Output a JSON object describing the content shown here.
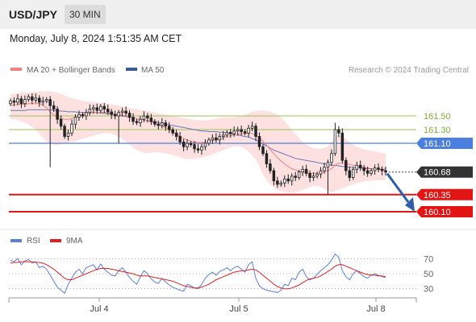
{
  "header": {
    "pair": "USD/JPY",
    "timeframe": "30 MIN"
  },
  "datetime": "Monday, July 8, 2024 1:51:35 AM CET",
  "legend": {
    "items": [
      {
        "label": "MA 20 + Bollinger Bands",
        "color": "#f08080"
      },
      {
        "label": "MA 50",
        "color": "#3a5a9a"
      }
    ],
    "credit": "Research © 2024 Trading Central"
  },
  "rsi_legend": {
    "items": [
      {
        "label": "RSI",
        "color": "#5b7fd6"
      },
      {
        "label": "9MA",
        "color": "#e02020"
      }
    ]
  },
  "colors": {
    "green_level": "#9bc25a",
    "blue_level": "#4a7fe0",
    "red_level": "#e31414",
    "current_box": "#333333",
    "arrow": "#2e5fa8",
    "candle": "#222222",
    "band_fill": "#fde0e0",
    "ma20": "#f08080",
    "ma50": "#6a78b8"
  },
  "chart_data": [
    {
      "type": "candlestick",
      "x_ticks": [
        "Jul 4",
        "Jul 5",
        "Jul 8"
      ],
      "ylim": [
        159.9,
        161.9
      ],
      "levels": [
        {
          "value": 161.5,
          "label": "161.50",
          "style": "green"
        },
        {
          "value": 161.3,
          "label": "161.30",
          "style": "green"
        },
        {
          "value": 161.1,
          "label": "161.10",
          "style": "blue"
        },
        {
          "value": 160.68,
          "label": "160.68",
          "style": "current"
        },
        {
          "value": 160.35,
          "label": "160.35",
          "style": "red"
        },
        {
          "value": 160.1,
          "label": "160.10",
          "style": "red"
        }
      ],
      "close_series": [
        161.72,
        161.7,
        161.75,
        161.68,
        161.74,
        161.78,
        161.73,
        161.76,
        161.7,
        161.72,
        161.74,
        161.65,
        161.6,
        161.45,
        161.35,
        161.2,
        161.25,
        161.38,
        161.48,
        161.52,
        161.5,
        161.55,
        161.6,
        161.62,
        161.58,
        161.64,
        161.6,
        161.56,
        161.52,
        161.5,
        161.55,
        161.57,
        161.54,
        161.48,
        161.42,
        161.4,
        161.45,
        161.5,
        161.47,
        161.42,
        161.38,
        161.36,
        161.4,
        161.35,
        161.3,
        161.25,
        161.2,
        161.12,
        161.05,
        161.1,
        161.08,
        161.02,
        161.0,
        161.05,
        161.1,
        161.15,
        161.18,
        161.15,
        161.2,
        161.22,
        161.26,
        161.24,
        161.28,
        161.3,
        161.27,
        161.25,
        161.32,
        161.35,
        161.2,
        161.05,
        160.95,
        160.8,
        160.7,
        160.55,
        160.5,
        160.52,
        160.58,
        160.55,
        160.62,
        160.6,
        160.68,
        160.72,
        160.66,
        160.6,
        160.62,
        160.65,
        160.7,
        160.75,
        160.82,
        160.95,
        161.3,
        161.25,
        160.85,
        160.7,
        160.6,
        160.72,
        160.78,
        160.74,
        160.7,
        160.66,
        160.7,
        160.74,
        160.72,
        160.7,
        160.68
      ],
      "ma20": [
        161.66,
        161.66,
        161.67,
        161.67,
        161.67,
        161.68,
        161.68,
        161.68,
        161.68,
        161.66,
        161.62,
        161.56,
        161.52,
        161.48,
        161.46,
        161.45,
        161.45,
        161.46,
        161.48,
        161.5,
        161.52,
        161.53,
        161.54,
        161.55,
        161.55,
        161.55,
        161.55,
        161.55,
        161.54,
        161.53,
        161.52,
        161.51,
        161.5,
        161.48,
        161.47,
        161.46,
        161.45,
        161.44,
        161.43,
        161.41,
        161.39,
        161.37,
        161.35,
        161.33,
        161.3,
        161.27,
        161.24,
        161.2,
        161.17,
        161.15,
        161.13,
        161.12,
        161.11,
        161.11,
        161.12,
        161.13,
        161.14,
        161.15,
        161.16,
        161.18,
        161.2,
        161.21,
        161.22,
        161.23,
        161.24,
        161.24,
        161.25,
        161.24,
        161.22,
        161.18,
        161.13,
        161.07,
        161.01,
        160.95,
        160.89,
        160.84,
        160.8,
        160.76,
        160.73,
        160.71,
        160.69,
        160.68,
        160.67,
        160.66,
        160.66,
        160.66,
        160.67,
        160.68,
        160.7,
        160.73,
        160.78,
        160.81,
        160.81,
        160.8,
        160.79,
        160.78,
        160.77,
        160.76,
        160.75,
        160.74,
        160.73,
        160.72,
        160.72,
        160.71,
        160.7
      ],
      "ma50": [
        161.58,
        161.58,
        161.58,
        161.58,
        161.58,
        161.59,
        161.59,
        161.59,
        161.59,
        161.59,
        161.59,
        161.59,
        161.58,
        161.58,
        161.57,
        161.57,
        161.56,
        161.56,
        161.56,
        161.55,
        161.55,
        161.55,
        161.55,
        161.55,
        161.55,
        161.54,
        161.54,
        161.53,
        161.53,
        161.52,
        161.51,
        161.5,
        161.49,
        161.48,
        161.47,
        161.46,
        161.45,
        161.44,
        161.43,
        161.42,
        161.41,
        161.4,
        161.39,
        161.38,
        161.37,
        161.36,
        161.35,
        161.34,
        161.33,
        161.32,
        161.31,
        161.3,
        161.29,
        161.28,
        161.28,
        161.27,
        161.27,
        161.27,
        161.26,
        161.26,
        161.25,
        161.24,
        161.23,
        161.22,
        161.21,
        161.2,
        161.19,
        161.17,
        161.15,
        161.12,
        161.09,
        161.06,
        161.03,
        161.0,
        160.98,
        160.96,
        160.94,
        160.92,
        160.9,
        160.88,
        160.87,
        160.86,
        160.85,
        160.84,
        160.83,
        160.82,
        160.81,
        160.8,
        160.79,
        160.78,
        160.78,
        160.77,
        160.76,
        160.76,
        160.75,
        160.75,
        160.74,
        160.74,
        160.73,
        160.73,
        160.73,
        160.72,
        160.72,
        160.72,
        160.72
      ],
      "band_upper": [
        161.82,
        161.82,
        161.83,
        161.84,
        161.84,
        161.84,
        161.85,
        161.85,
        161.86,
        161.86,
        161.86,
        161.86,
        161.85,
        161.84,
        161.82,
        161.8,
        161.78,
        161.76,
        161.75,
        161.73,
        161.72,
        161.71,
        161.71,
        161.7,
        161.7,
        161.69,
        161.69,
        161.68,
        161.67,
        161.66,
        161.65,
        161.64,
        161.63,
        161.62,
        161.61,
        161.6,
        161.59,
        161.58,
        161.57,
        161.56,
        161.55,
        161.54,
        161.53,
        161.52,
        161.51,
        161.5,
        161.49,
        161.48,
        161.47,
        161.46,
        161.45,
        161.44,
        161.44,
        161.43,
        161.43,
        161.44,
        161.45,
        161.46,
        161.47,
        161.48,
        161.48,
        161.48,
        161.48,
        161.49,
        161.5,
        161.52,
        161.54,
        161.56,
        161.57,
        161.58,
        161.58,
        161.57,
        161.56,
        161.54,
        161.52,
        161.48,
        161.42,
        161.36,
        161.3,
        161.24,
        161.18,
        161.12,
        161.08,
        161.05,
        161.03,
        161.02,
        161.02,
        161.03,
        161.06,
        161.12,
        161.2,
        161.22,
        161.2,
        161.16,
        161.12,
        161.08,
        161.05,
        161.03,
        161.01,
        161.0,
        160.99,
        160.98,
        160.97,
        160.96,
        160.95
      ],
      "band_lower": [
        161.46,
        161.45,
        161.44,
        161.42,
        161.4,
        161.38,
        161.34,
        161.3,
        161.24,
        161.18,
        161.12,
        161.1,
        161.08,
        161.08,
        161.09,
        161.1,
        161.11,
        161.12,
        161.13,
        161.15,
        161.17,
        161.18,
        161.2,
        161.21,
        161.23,
        161.24,
        161.25,
        161.25,
        161.24,
        161.22,
        161.19,
        161.16,
        161.12,
        161.08,
        161.04,
        161.0,
        160.98,
        160.96,
        160.96,
        160.96,
        160.97,
        160.97,
        160.96,
        160.95,
        160.94,
        160.93,
        160.91,
        160.9,
        160.88,
        160.87,
        160.87,
        160.87,
        160.88,
        160.89,
        160.9,
        160.92,
        160.94,
        160.96,
        160.98,
        161.0,
        161.02,
        161.04,
        161.05,
        161.06,
        161.05,
        161.02,
        160.98,
        160.92,
        160.86,
        160.76,
        160.64,
        160.56,
        160.5,
        160.46,
        160.42,
        160.4,
        160.39,
        160.38,
        160.38,
        160.39,
        160.4,
        160.42,
        160.44,
        160.46,
        160.48,
        160.48,
        160.46,
        160.43,
        160.4,
        160.38,
        160.4,
        160.42,
        160.44,
        160.46,
        160.48,
        160.5,
        160.52,
        160.53,
        160.54,
        160.55,
        160.55,
        160.56,
        160.56,
        160.56,
        160.56
      ]
    },
    {
      "type": "line",
      "name": "rsi",
      "ylim": [
        20,
        80
      ],
      "y_ticks": [
        70,
        50,
        30
      ],
      "series": [
        {
          "name": "RSI",
          "values": [
            68,
            66,
            70,
            62,
            67,
            69,
            64,
            66,
            58,
            60,
            56,
            48,
            40,
            32,
            28,
            24,
            36,
            44,
            52,
            56,
            50,
            58,
            60,
            62,
            55,
            63,
            56,
            52,
            48,
            47,
            54,
            58,
            52,
            45,
            40,
            36,
            46,
            54,
            50,
            43,
            39,
            37,
            44,
            39,
            35,
            32,
            30,
            28,
            27,
            36,
            34,
            31,
            30,
            36,
            44,
            49,
            52,
            48,
            53,
            55,
            58,
            54,
            58,
            60,
            56,
            52,
            62,
            66,
            44,
            34,
            30,
            28,
            27,
            26,
            25,
            28,
            36,
            34,
            44,
            42,
            52,
            56,
            46,
            42,
            44,
            49,
            54,
            58,
            62,
            68,
            76,
            72,
            54,
            46,
            42,
            50,
            54,
            50,
            46,
            44,
            48,
            50,
            48,
            46,
            45
          ]
        },
        {
          "name": "9MA",
          "values": [
            64,
            65,
            65,
            66,
            66,
            66,
            66,
            65,
            65,
            64,
            62,
            59,
            56,
            52,
            48,
            44,
            42,
            42,
            44,
            46,
            48,
            50,
            52,
            54,
            56,
            57,
            57,
            57,
            56,
            55,
            54,
            53,
            52,
            51,
            50,
            48,
            47,
            47,
            47,
            46,
            45,
            44,
            43,
            42,
            41,
            40,
            38,
            36,
            34,
            33,
            32,
            31,
            31,
            32,
            34,
            36,
            39,
            42,
            44,
            46,
            48,
            50,
            52,
            53,
            54,
            54,
            55,
            56,
            55,
            52,
            48,
            44,
            40,
            36,
            33,
            31,
            30,
            30,
            31,
            33,
            35,
            38,
            41,
            43,
            44,
            45,
            47,
            50,
            53,
            56,
            60,
            62,
            62,
            60,
            58,
            56,
            54,
            52,
            50,
            49,
            48,
            48,
            47,
            47,
            46
          ]
        }
      ]
    }
  ]
}
